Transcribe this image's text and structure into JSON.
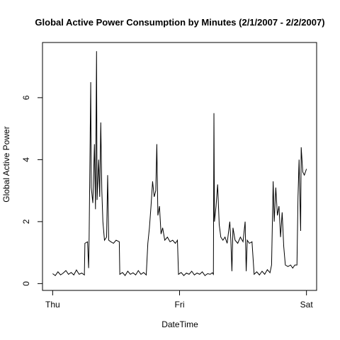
{
  "chart_data": {
    "type": "line",
    "title": "Global Active Power Consumption by Minutes (2/1/2007 - 2/2/2007)",
    "xlabel": "DateTime",
    "ylabel": "Global Active Power",
    "x": [
      0,
      0.5,
      1,
      1.5,
      2,
      2.5,
      3,
      3.5,
      4,
      4.5,
      5,
      5.5,
      6,
      6.1,
      6.6,
      6.8,
      6.9,
      7.2,
      7.3,
      7.6,
      7.9,
      8.1,
      8.3,
      8.4,
      8.7,
      8.9,
      9.1,
      9.3,
      9.5,
      9.8,
      10.2,
      10.4,
      10.6,
      11,
      11.5,
      12,
      12.6,
      12.7,
      13.2,
      13.7,
      14.2,
      14.7,
      15.2,
      15.7,
      16.2,
      16.7,
      17.2,
      17.7,
      18,
      18.3,
      18.6,
      18.9,
      19.2,
      19.5,
      19.7,
      19.9,
      20.2,
      20.5,
      20.8,
      21.2,
      21.7,
      22.2,
      22.7,
      23.2,
      23.6,
      23.8,
      24.3,
      24.8,
      25.3,
      25.8,
      26.3,
      26.8,
      27.3,
      27.8,
      28.3,
      28.8,
      29.3,
      29.8,
      30.2,
      30.4,
      30.5,
      30.6,
      30.9,
      31.2,
      31.5,
      31.8,
      32.2,
      32.6,
      33,
      33.5,
      33.7,
      33.9,
      34.1,
      34.5,
      35,
      35.5,
      36,
      36.4,
      36.6,
      36.8,
      37.2,
      37.7,
      38.1,
      38.6,
      39.1,
      39.6,
      40.1,
      40.6,
      41.1,
      41.4,
      41.7,
      41.9,
      42.2,
      42.5,
      42.8,
      43.1,
      43.4,
      43.7,
      44,
      44.5,
      45,
      45.4,
      45.8,
      46.2,
      46.4,
      46.6,
      46.9,
      47,
      47.3,
      47.6,
      48
    ],
    "values": [
      0.32,
      0.26,
      0.38,
      0.28,
      0.34,
      0.42,
      0.3,
      0.36,
      0.28,
      0.44,
      0.3,
      0.34,
      0.28,
      1.3,
      1.35,
      0.5,
      1.5,
      6.5,
      3.1,
      2.6,
      4.5,
      2.4,
      7.5,
      2.7,
      4.0,
      2.8,
      5.2,
      3.0,
      2.0,
      1.4,
      1.5,
      3.5,
      1.4,
      1.35,
      1.3,
      1.4,
      1.35,
      0.3,
      0.36,
      0.26,
      0.4,
      0.3,
      0.35,
      0.28,
      0.42,
      0.3,
      0.36,
      0.28,
      1.3,
      1.8,
      2.5,
      3.3,
      2.8,
      3.0,
      4.5,
      2.2,
      2.5,
      1.6,
      1.8,
      1.4,
      1.5,
      1.35,
      1.4,
      1.3,
      1.4,
      0.3,
      0.36,
      0.26,
      0.34,
      0.3,
      0.4,
      0.28,
      0.34,
      0.3,
      0.38,
      0.26,
      0.32,
      0.3,
      0.35,
      0.3,
      5.5,
      2.0,
      2.5,
      3.2,
      1.9,
      1.5,
      1.4,
      1.5,
      1.3,
      2.0,
      1.4,
      0.4,
      1.8,
      1.4,
      1.3,
      1.5,
      1.35,
      2.0,
      0.4,
      1.4,
      1.3,
      1.35,
      0.3,
      0.38,
      0.28,
      0.4,
      0.3,
      0.45,
      0.35,
      0.6,
      3.3,
      2.0,
      3.1,
      2.2,
      2.5,
      1.5,
      2.3,
      1.2,
      0.6,
      0.55,
      0.6,
      0.5,
      0.6,
      0.6,
      2.8,
      4.0,
      1.7,
      4.4,
      3.6,
      3.5,
      3.7
    ],
    "color": "#000000",
    "xlim": [
      -1.92,
      49.92
    ],
    "xticks": [
      {
        "value": 0,
        "label": "Thu"
      },
      {
        "value": 24,
        "label": "Fri"
      },
      {
        "value": 48,
        "label": "Sat"
      }
    ],
    "ylim": [
      -0.22,
      7.78
    ],
    "yticks": [
      0,
      2,
      4,
      6
    ]
  }
}
